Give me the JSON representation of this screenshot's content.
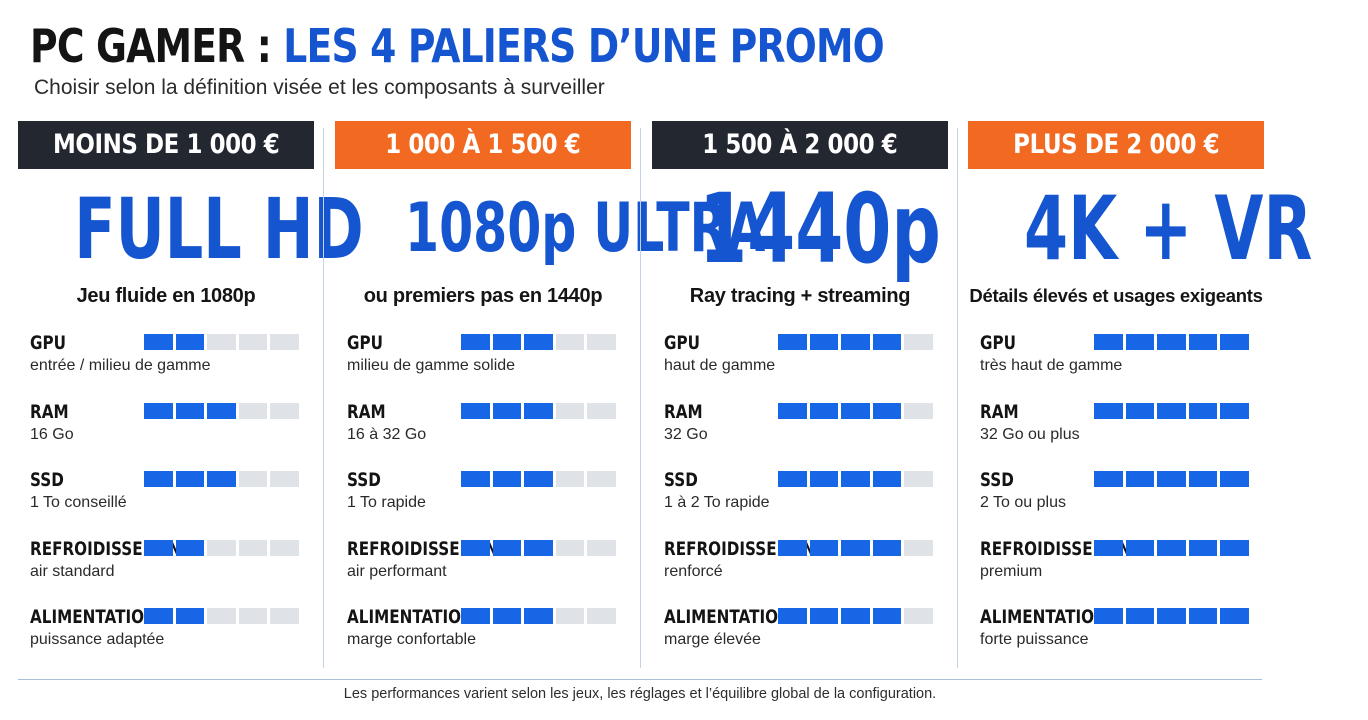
{
  "title": {
    "part1": "PC GAMER : ",
    "part2": "LES 4 PALIERS D’UNE PROMO"
  },
  "subtitle": "Choisir selon la définition visée et les composants à surveiller",
  "colors": {
    "accent_blue": "#1555d0",
    "bar_on": "#1666e6",
    "bar_off": "#dfe3e8",
    "header_dark": "#232830",
    "header_orange": "#f26a21"
  },
  "tiers": [
    {
      "header": "MOINS DE 1 000 €",
      "header_color": "#232830",
      "headline": "FULL HD",
      "tagline": "Jeu fluide en 1080p",
      "components": [
        {
          "name": "GPU",
          "desc": "entrée / milieu de gamme",
          "level": 2
        },
        {
          "name": "RAM",
          "desc": "16 Go",
          "level": 3
        },
        {
          "name": "SSD",
          "desc": "1 To conseillé",
          "level": 3
        },
        {
          "name": "REFROIDISSEMENT",
          "desc": "air standard",
          "level": 2
        },
        {
          "name": "ALIMENTATION",
          "desc": "puissance adaptée",
          "level": 2
        }
      ]
    },
    {
      "header": "1 000 À 1 500 €",
      "header_color": "#f26a21",
      "headline": "1080p ULTRA",
      "tagline": "ou premiers pas en 1440p",
      "components": [
        {
          "name": "GPU",
          "desc": "milieu de gamme solide",
          "level": 3
        },
        {
          "name": "RAM",
          "desc": "16 à 32 Go",
          "level": 3
        },
        {
          "name": "SSD",
          "desc": "1 To rapide",
          "level": 3
        },
        {
          "name": "REFROIDISSEMENT",
          "desc": "air performant",
          "level": 3
        },
        {
          "name": "ALIMENTATION",
          "desc": "marge confortable",
          "level": 3
        }
      ]
    },
    {
      "header": "1 500 À 2 000 €",
      "header_color": "#232830",
      "headline": "1440p",
      "tagline": "Ray tracing + streaming",
      "components": [
        {
          "name": "GPU",
          "desc": "haut de gamme",
          "level": 4
        },
        {
          "name": "RAM",
          "desc": "32 Go",
          "level": 4
        },
        {
          "name": "SSD",
          "desc": "1 à 2 To rapide",
          "level": 4
        },
        {
          "name": "REFROIDISSEMENT",
          "desc": "renforcé",
          "level": 4
        },
        {
          "name": "ALIMENTATION",
          "desc": "marge élevée",
          "level": 4
        }
      ]
    },
    {
      "header": "PLUS DE 2 000 €",
      "header_color": "#f26a21",
      "headline": "4K + VR",
      "tagline": "Détails élevés et usages exigeants",
      "components": [
        {
          "name": "GPU",
          "desc": "très haut de gamme",
          "level": 5
        },
        {
          "name": "RAM",
          "desc": "32 Go ou plus",
          "level": 5
        },
        {
          "name": "SSD",
          "desc": "2 To ou plus",
          "level": 5
        },
        {
          "name": "REFROIDISSEMENT",
          "desc": "premium",
          "level": 5
        },
        {
          "name": "ALIMENTATION",
          "desc": "forte puissance",
          "level": 5
        }
      ]
    }
  ],
  "bar_max": 5,
  "footer": "Les performances varient selon les jeux, les réglages et l’équilibre global de la configuration."
}
